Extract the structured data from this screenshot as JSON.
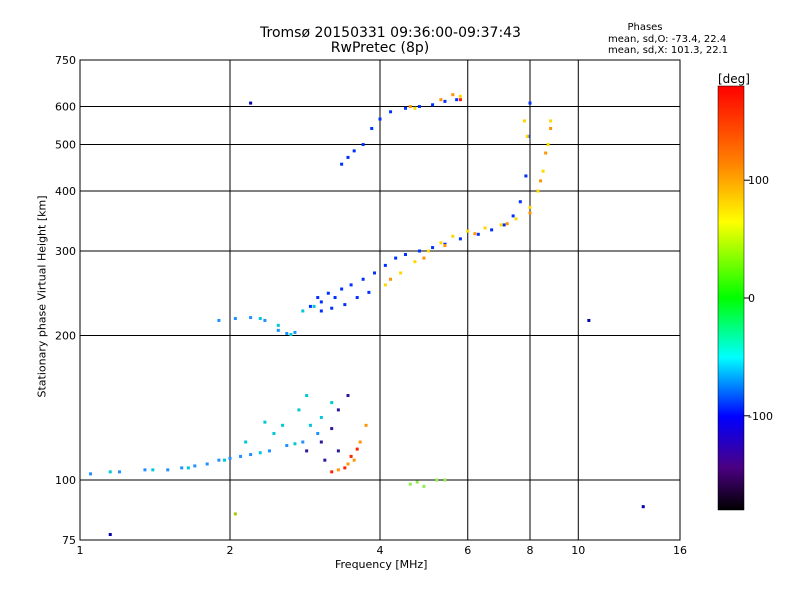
{
  "chart_data": {
    "type": "scatter",
    "title": "Tromsø 20150331 09:36:00-09:37:43",
    "subtitle": "RwPretec (8p)",
    "xlabel": "Frequency [MHz]",
    "ylabel": "Stationary phase Virtual Height [km]",
    "x_scale": "log",
    "y_scale": "log",
    "xlim": [
      1,
      16
    ],
    "ylim": [
      75,
      750
    ],
    "x_ticks": [
      1,
      2,
      4,
      6,
      8,
      10,
      16
    ],
    "y_ticks": [
      75,
      100,
      200,
      300,
      400,
      500,
      600,
      750
    ],
    "grid": true,
    "phases": {
      "title": "Phases",
      "o_mode": "mean, sd,O: -73.4, 22.4",
      "x_mode": "mean, sd,X: 101.3, 22.1"
    },
    "colorbar": {
      "label": "[deg]",
      "range": [
        -180,
        180
      ],
      "ticks": [
        100,
        0,
        -100
      ],
      "colors": [
        "#ff0000",
        "#ff8000",
        "#ffff00",
        "#00ff00",
        "#00ffff",
        "#0000ff",
        "#4b0082",
        "#000000"
      ]
    },
    "series": [
      {
        "color": "#1e90ff",
        "points": [
          [
            1.05,
            103
          ],
          [
            1.2,
            104
          ],
          [
            1.35,
            105
          ],
          [
            1.5,
            105
          ],
          [
            1.6,
            106
          ],
          [
            1.7,
            107
          ],
          [
            1.8,
            108
          ],
          [
            1.9,
            110
          ],
          [
            2.0,
            111
          ],
          [
            2.1,
            112
          ],
          [
            2.2,
            113
          ],
          [
            2.4,
            115
          ],
          [
            2.6,
            118
          ],
          [
            2.8,
            120
          ],
          [
            3.0,
            125
          ],
          [
            1.9,
            215
          ],
          [
            2.05,
            217
          ],
          [
            2.2,
            218
          ],
          [
            2.35,
            215
          ],
          [
            2.5,
            205
          ],
          [
            2.6,
            202
          ],
          [
            2.7,
            203
          ]
        ]
      },
      {
        "color": "#00c8d8",
        "points": [
          [
            1.15,
            104
          ],
          [
            1.4,
            105
          ],
          [
            1.65,
            106
          ],
          [
            1.95,
            110
          ],
          [
            2.3,
            114
          ],
          [
            2.7,
            119
          ],
          [
            2.9,
            130
          ],
          [
            2.75,
            140
          ],
          [
            3.05,
            135
          ],
          [
            2.45,
            125
          ],
          [
            2.15,
            120
          ],
          [
            2.55,
            130
          ],
          [
            2.35,
            132
          ],
          [
            2.85,
            150
          ],
          [
            3.2,
            145
          ],
          [
            2.95,
            230
          ],
          [
            2.8,
            225
          ],
          [
            2.5,
            210
          ],
          [
            2.3,
            217
          ],
          [
            2.65,
            201
          ]
        ]
      },
      {
        "color": "#0030ff",
        "points": [
          [
            2.9,
            230
          ],
          [
            3.0,
            240
          ],
          [
            3.05,
            235
          ],
          [
            3.15,
            245
          ],
          [
            3.25,
            240
          ],
          [
            3.35,
            250
          ],
          [
            3.5,
            255
          ],
          [
            3.7,
            262
          ],
          [
            3.9,
            270
          ],
          [
            4.1,
            280
          ],
          [
            4.3,
            290
          ],
          [
            4.5,
            295
          ],
          [
            4.8,
            300
          ],
          [
            5.1,
            305
          ],
          [
            5.4,
            310
          ],
          [
            5.8,
            318
          ],
          [
            6.3,
            325
          ],
          [
            6.7,
            332
          ],
          [
            7.1,
            340
          ],
          [
            7.4,
            355
          ],
          [
            7.65,
            380
          ],
          [
            7.85,
            430
          ],
          [
            7.95,
            520
          ],
          [
            8.0,
            610
          ],
          [
            3.05,
            225
          ],
          [
            3.2,
            228
          ],
          [
            3.4,
            232
          ],
          [
            3.6,
            240
          ],
          [
            3.8,
            246
          ],
          [
            3.35,
            455
          ],
          [
            3.45,
            470
          ],
          [
            3.55,
            485
          ],
          [
            3.7,
            500
          ],
          [
            3.85,
            540
          ],
          [
            4.0,
            565
          ],
          [
            4.2,
            585
          ],
          [
            4.5,
            595
          ],
          [
            4.8,
            600
          ],
          [
            5.1,
            605
          ],
          [
            5.4,
            615
          ],
          [
            5.7,
            620
          ]
        ]
      },
      {
        "color": "#ffd800",
        "points": [
          [
            4.1,
            255
          ],
          [
            4.4,
            270
          ],
          [
            4.7,
            285
          ],
          [
            5.0,
            300
          ],
          [
            5.3,
            312
          ],
          [
            5.6,
            322
          ],
          [
            6.0,
            330
          ],
          [
            6.5,
            335
          ],
          [
            7.0,
            340
          ],
          [
            7.5,
            350
          ],
          [
            8.0,
            370
          ],
          [
            8.3,
            400
          ],
          [
            8.5,
            440
          ],
          [
            8.7,
            500
          ],
          [
            8.8,
            560
          ],
          [
            7.8,
            560
          ],
          [
            7.9,
            520
          ],
          [
            4.7,
            595
          ],
          [
            5.8,
            630
          ]
        ]
      },
      {
        "color": "#ff9500",
        "points": [
          [
            3.3,
            105
          ],
          [
            3.45,
            108
          ],
          [
            3.55,
            110
          ],
          [
            3.65,
            120
          ],
          [
            3.75,
            130
          ],
          [
            4.2,
            262
          ],
          [
            4.9,
            290
          ],
          [
            5.4,
            308
          ],
          [
            6.2,
            326
          ],
          [
            7.2,
            342
          ],
          [
            8.0,
            360
          ],
          [
            8.4,
            420
          ],
          [
            8.6,
            480
          ],
          [
            8.8,
            540
          ],
          [
            4.6,
            600
          ],
          [
            5.3,
            620
          ],
          [
            5.6,
            635
          ]
        ]
      },
      {
        "color": "#ff2000",
        "points": [
          [
            3.2,
            104
          ],
          [
            3.4,
            106
          ],
          [
            3.5,
            112
          ],
          [
            3.6,
            116
          ],
          [
            5.8,
            620
          ]
        ]
      },
      {
        "color": "#2a1a9a",
        "points": [
          [
            2.85,
            115
          ],
          [
            3.05,
            120
          ],
          [
            3.2,
            128
          ],
          [
            3.3,
            140
          ],
          [
            3.45,
            150
          ],
          [
            3.1,
            110
          ],
          [
            3.3,
            115
          ]
        ]
      },
      {
        "color": "#90ee50",
        "points": [
          [
            4.6,
            98
          ],
          [
            4.75,
            99
          ],
          [
            4.9,
            97
          ],
          [
            5.2,
            100
          ],
          [
            5.4,
            100
          ]
        ]
      },
      {
        "color": "#aac800",
        "points": [
          [
            2.05,
            85
          ]
        ]
      },
      {
        "color": "#0000aa",
        "points": [
          [
            2.2,
            610
          ],
          [
            10.5,
            215
          ],
          [
            13.5,
            88
          ],
          [
            1.15,
            77
          ]
        ]
      }
    ]
  }
}
